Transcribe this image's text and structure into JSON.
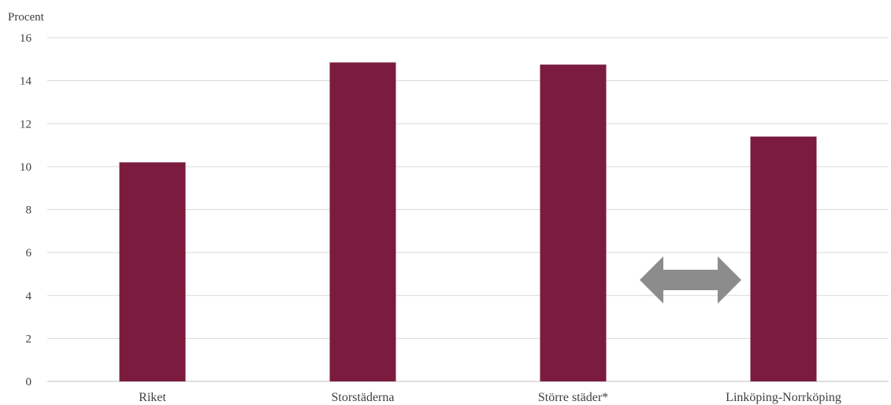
{
  "chart_data": {
    "type": "bar",
    "ylabel": "Procent",
    "xlabel": "",
    "ylim": [
      0,
      16
    ],
    "yticks": [
      0,
      2,
      4,
      6,
      8,
      10,
      12,
      14,
      16
    ],
    "categories": [
      "Riket",
      "Storstäderna",
      "Större städer*",
      "Linköping-Norrköping"
    ],
    "values": [
      10.2,
      14.85,
      14.75,
      11.4
    ],
    "grid": true,
    "legend": "none",
    "annotation": "double-arrow-between-storre-stader-and-linkoping-norrkoping"
  },
  "colors": {
    "bar": "#7b1c3f",
    "arrow": "#8c8c8c",
    "grid": "#d9d9d9"
  }
}
